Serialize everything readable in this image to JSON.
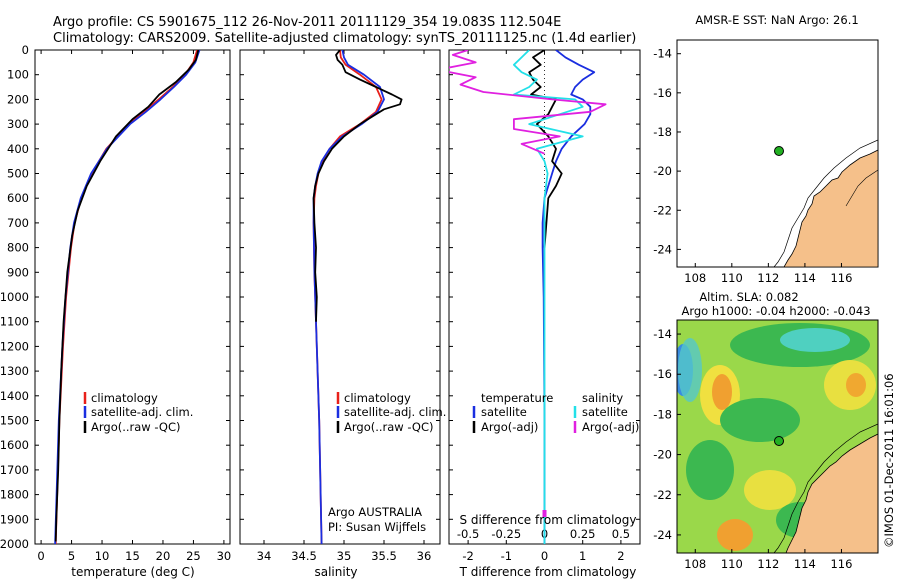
{
  "titles": {
    "line1": "Argo profile: CS 5901675_112 26-Nov-2011 20111129_354 19.083S 112.504E",
    "line2": "Climatology: CARS2009. Satellite-adjusted climatology: synTS_20111125.nc (1.4d earlier)"
  },
  "depth_ticks": [
    "0",
    "100",
    "200",
    "300",
    "400",
    "500",
    "600",
    "700",
    "800",
    "900",
    "1000",
    "1100",
    "1200",
    "1300",
    "1400",
    "1500",
    "1600",
    "1700",
    "1800",
    "1900",
    "2000"
  ],
  "colors": {
    "climatology": "#e8201a",
    "satellite": "#1a2ee0",
    "argo": "#000000",
    "salinity_sat": "#22e0e8",
    "salinity_argo": "#e020e0",
    "land": "#f5c08a"
  },
  "chart_data": [
    {
      "type": "line",
      "id": "temperature",
      "xlabel": "temperature (deg C)",
      "xlim": [
        -1,
        31
      ],
      "ylim": [
        2000,
        0
      ],
      "xticks": [
        "0",
        "5",
        "10",
        "15",
        "20",
        "25",
        "30"
      ],
      "series": [
        {
          "name": "climatology",
          "depth": [
            0,
            50,
            100,
            150,
            200,
            250,
            300,
            400,
            500,
            600,
            700,
            800,
            1000,
            1200,
            1500,
            2000
          ],
          "values": [
            25.6,
            25.0,
            23.6,
            21.6,
            19.3,
            16.8,
            14.4,
            10.7,
            8.3,
            6.6,
            5.5,
            4.9,
            4.1,
            3.6,
            3.0,
            2.4
          ]
        },
        {
          "name": "satellite-adj. clim.",
          "depth": [
            0,
            50,
            100,
            150,
            200,
            250,
            300,
            400,
            500,
            600,
            700,
            800,
            1000,
            1200,
            1500,
            2000
          ],
          "values": [
            26.0,
            25.3,
            23.8,
            21.8,
            19.6,
            17.2,
            14.6,
            10.8,
            8.2,
            6.5,
            5.4,
            4.8,
            4.0,
            3.5,
            2.9,
            2.3
          ]
        },
        {
          "name": "Argo(..raw -QC)",
          "depth": [
            0,
            40,
            80,
            130,
            180,
            230,
            280,
            350,
            450,
            550,
            650,
            750,
            900,
            1100,
            1300,
            1500,
            1700,
            1900,
            1990
          ],
          "values": [
            25.8,
            25.4,
            24.2,
            22.1,
            19.4,
            17.6,
            15.0,
            12.3,
            9.7,
            7.5,
            6.0,
            5.1,
            4.3,
            3.7,
            3.3,
            3.0,
            2.8,
            2.5,
            2.4
          ]
        }
      ],
      "legend": [
        "climatology",
        "satellite-adj. clim.",
        "Argo(..raw -QC)"
      ]
    },
    {
      "type": "line",
      "id": "salinity",
      "xlabel": "salinity",
      "xlim": [
        33.7,
        36.2
      ],
      "ylim": [
        2000,
        0
      ],
      "xticks": [
        "34",
        "34.5",
        "35",
        "35.5",
        "36"
      ],
      "series": [
        {
          "name": "climatology",
          "depth": [
            0,
            30,
            60,
            100,
            150,
            200,
            250,
            300,
            350,
            400,
            450,
            500,
            550,
            600,
            700,
            900,
            1200,
            1500,
            2000
          ],
          "values": [
            34.95,
            34.96,
            35.02,
            35.2,
            35.4,
            35.47,
            35.4,
            35.2,
            34.95,
            34.82,
            34.73,
            34.68,
            34.65,
            34.63,
            34.62,
            34.63,
            34.66,
            34.69,
            34.72
          ]
        },
        {
          "name": "satellite-adj. clim.",
          "depth": [
            0,
            30,
            60,
            100,
            150,
            200,
            250,
            300,
            350,
            400,
            450,
            500,
            550,
            600,
            700,
            900,
            1200,
            1500,
            2000
          ],
          "values": [
            34.98,
            35.0,
            35.05,
            35.25,
            35.45,
            35.5,
            35.42,
            35.22,
            34.98,
            34.82,
            34.72,
            34.67,
            34.64,
            34.62,
            34.62,
            34.63,
            34.66,
            34.69,
            34.72
          ]
        },
        {
          "name": "Argo(..raw -QC)",
          "depth": [
            0,
            20,
            40,
            60,
            90,
            120,
            150,
            180,
            200,
            220,
            240,
            270,
            300,
            350,
            400,
            450,
            500,
            550,
            600,
            700,
            800,
            900,
            1000,
            1100
          ],
          "values": [
            34.95,
            34.9,
            34.92,
            34.98,
            35.02,
            35.2,
            35.4,
            35.6,
            35.72,
            35.7,
            35.5,
            35.35,
            35.2,
            35.0,
            34.85,
            34.75,
            34.68,
            34.64,
            34.62,
            34.63,
            34.65,
            34.64,
            34.66,
            34.65
          ]
        }
      ],
      "legend": [
        "climatology",
        "satellite-adj. clim.",
        "Argo(..raw -QC)"
      ],
      "annotation": [
        "Argo AUSTRALIA",
        "PI: Susan Wijffels"
      ]
    },
    {
      "type": "line",
      "id": "difference",
      "xlabel": "T difference from climatology",
      "xlabel_top": "S difference from climatology",
      "xlim": [
        -2.5,
        2.5
      ],
      "ylim": [
        2000,
        0
      ],
      "xticks": [
        "-2",
        "-1",
        "0",
        "1",
        "2"
      ],
      "xticks_top": [
        "-0.5",
        "-0.25",
        "0",
        "0.25",
        "0.5"
      ],
      "series": [
        {
          "name": "temperature satellite",
          "depth": [
            0,
            30,
            60,
            90,
            120,
            150,
            180,
            200,
            230,
            260,
            300,
            350,
            400,
            450,
            500,
            550,
            600,
            700,
            800,
            1000,
            1500,
            2000
          ],
          "values": [
            0.3,
            0.55,
            0.9,
            1.3,
            1.0,
            0.8,
            0.7,
            1.0,
            1.2,
            1.2,
            1.05,
            0.7,
            0.45,
            0.3,
            0.2,
            0.1,
            0.0,
            -0.05,
            -0.05,
            -0.02,
            0.0,
            0.0
          ]
        },
        {
          "name": "temperature Argo(-adj)",
          "depth": [
            0,
            30,
            60,
            90,
            120,
            150,
            180,
            200,
            230,
            260,
            300,
            350,
            400,
            450,
            500,
            550,
            600,
            700,
            800
          ],
          "values": [
            0.0,
            -0.3,
            -0.1,
            -0.4,
            -0.3,
            -0.1,
            -0.35,
            0.3,
            0.2,
            0.1,
            -0.2,
            0.1,
            0.3,
            0.2,
            0.45,
            0.3,
            0.1,
            0.05,
            0.0
          ]
        },
        {
          "name": "salinity satellite",
          "depth": [
            0,
            30,
            60,
            90,
            120,
            150,
            180,
            200,
            230,
            260,
            300,
            350,
            400,
            450,
            500,
            600,
            800,
            1000,
            1500,
            2000
          ],
          "values": [
            -0.1,
            -0.15,
            -0.2,
            -0.15,
            -0.05,
            -0.1,
            -0.2,
            0.2,
            0.25,
            0.1,
            -0.1,
            0.25,
            -0.05,
            0.0,
            0.02,
            0.0,
            0.0,
            0.0,
            0.0,
            0.0
          ]
        },
        {
          "name": "salinity Argo(-adj)",
          "depth": [
            0,
            20,
            50,
            80,
            110,
            140,
            170,
            200,
            220,
            250,
            280,
            320,
            350,
            380,
            420
          ],
          "values": [
            -0.5,
            -0.6,
            -0.45,
            -0.7,
            -0.45,
            -0.55,
            -0.4,
            0.05,
            0.4,
            0.3,
            -0.2,
            -0.2,
            0.1,
            -0.15,
            0.0
          ]
        }
      ],
      "legend_temperature": {
        "title": "temperature",
        "items": [
          "satellite",
          "Argo(-adj)"
        ]
      },
      "legend_salinity": {
        "title": "salinity",
        "items": [
          "satellite",
          "Argo(-adj)"
        ]
      }
    },
    {
      "type": "map",
      "id": "sst_map",
      "title": "AMSR-E SST: NaN Argo: 26.1",
      "xticks": [
        "108",
        "110",
        "112",
        "114",
        "116"
      ],
      "yticks": [
        "-14",
        "-16",
        "-18",
        "-20",
        "-22",
        "-24"
      ],
      "marker": {
        "lon": 112.504,
        "lat": -19.083
      }
    },
    {
      "type": "heatmap",
      "id": "sla_map",
      "title_line1": "Altim. SLA: 0.082",
      "title_line2": "Argo h1000: -0.04 h2000: -0.043",
      "xticks": [
        "108",
        "110",
        "112",
        "114",
        "116"
      ],
      "yticks": [
        "-14",
        "-16",
        "-18",
        "-20",
        "-22",
        "-24"
      ],
      "marker": {
        "lon": 112.504,
        "lat": -19.083
      }
    }
  ],
  "credit": "©IMOS 01-Dec-2011 16:01:06"
}
